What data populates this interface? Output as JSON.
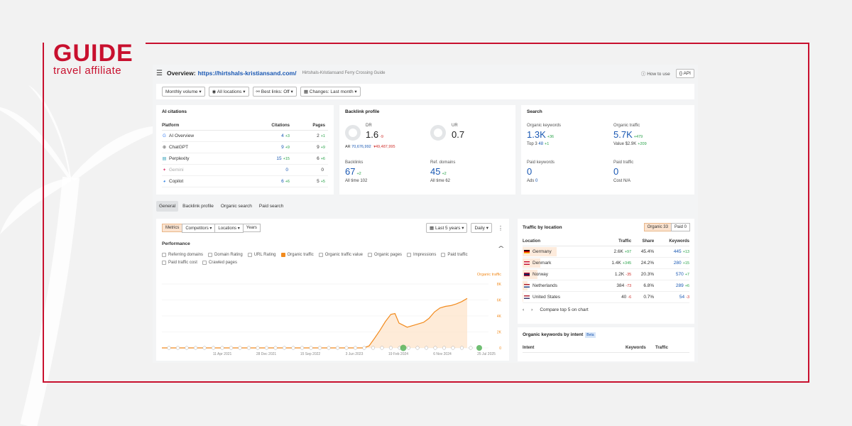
{
  "brand": {
    "name": "GUIDE",
    "tagline": "travel affiliate",
    "accent": "#c8102e"
  },
  "header": {
    "title": "Overview:",
    "url": "https://hirtshals-kristiansand.com/",
    "subtitle": "Hirtshals-Kristiansand Ferry Crossing Guide",
    "how_to_use": "How to use",
    "api": "API"
  },
  "filters": [
    "Monthly volume",
    "All locations",
    "Best links: Off",
    "Changes: Last month"
  ],
  "ai_citations": {
    "title": "AI citations",
    "cols": [
      "Platform",
      "Citations",
      "Pages"
    ],
    "rows": [
      {
        "platform": "AI Overview",
        "icon": "google-icon",
        "citations": "4",
        "cit_delta": "+3",
        "pages": "2",
        "pages_delta": "+1"
      },
      {
        "platform": "ChatGPT",
        "icon": "chatgpt-icon",
        "citations": "9",
        "cit_delta": "+9",
        "pages": "9",
        "pages_delta": "+9"
      },
      {
        "platform": "Perplexity",
        "icon": "perplexity-icon",
        "citations": "15",
        "cit_delta": "+15",
        "pages": "6",
        "pages_delta": "+6"
      },
      {
        "platform": "Gemini",
        "icon": "gemini-icon",
        "citations": "0",
        "cit_delta": "",
        "pages": "0",
        "pages_delta": ""
      },
      {
        "platform": "Copilot",
        "icon": "copilot-icon",
        "citations": "6",
        "cit_delta": "+6",
        "pages": "5",
        "pages_delta": "+5"
      }
    ]
  },
  "backlink": {
    "title": "Backlink profile",
    "dr_label": "DR",
    "dr": "1.6",
    "dr_delta": "-9",
    "ar_label": "AR",
    "ar": "70,676,992",
    "ar_delta": "▾49,487,995",
    "ur_label": "UR",
    "ur": "0.7",
    "backlinks_label": "Backlinks",
    "backlinks": "67",
    "backlinks_delta": "+2",
    "backlinks_all": "All time 102",
    "refdomains_label": "Ref. domains",
    "refdomains": "45",
    "refdomains_delta": "+2",
    "refdomains_all": "All time 62"
  },
  "search": {
    "title": "Search",
    "ok_label": "Organic keywords",
    "ok": "1.3K",
    "ok_delta": "+36",
    "ok_sub": "Top 3",
    "ok_top3": "48",
    "ok_top3_delta": "+1",
    "ot_label": "Organic traffic",
    "ot": "5.7K",
    "ot_delta": "+479",
    "ot_sub": "Value $2.9K",
    "ot_sub_delta": "+209",
    "pk_label": "Paid keywords",
    "pk": "0",
    "pk_sub": "Ads",
    "pk_ads": "0",
    "pt_label": "Paid traffic",
    "pt": "0",
    "pt_sub": "Cost N/A"
  },
  "tabs": [
    "General",
    "Backlink profile",
    "Organic search",
    "Paid search"
  ],
  "perf": {
    "toolbar": [
      "Metrics",
      "Competitors",
      "Locations",
      "Years"
    ],
    "range": "Last 5 years",
    "interval": "Daily",
    "title": "Performance",
    "checks": [
      {
        "label": "Referring domains",
        "on": false
      },
      {
        "label": "Domain Rating",
        "on": false
      },
      {
        "label": "URL Rating",
        "on": false
      },
      {
        "label": "Organic traffic",
        "on": true
      },
      {
        "label": "Organic traffic value",
        "on": false
      },
      {
        "label": "Organic pages",
        "on": false
      },
      {
        "label": "Impressions",
        "on": false
      },
      {
        "label": "Paid traffic",
        "on": false
      },
      {
        "label": "Paid traffic cost",
        "on": false
      },
      {
        "label": "Crawled pages",
        "on": false
      }
    ]
  },
  "chart_data": {
    "type": "line",
    "series": [
      {
        "name": "Organic traffic",
        "color": "#f28b1e"
      }
    ],
    "x_ticks": [
      "11 Apr 2021",
      "28 Dec 2021",
      "15 Sep 2022",
      "3 Jun 2023",
      "19 Feb 2024",
      "6 Nov 2024",
      "25 Jul 2025"
    ],
    "y_ticks": [
      "8K",
      "6K",
      "4K",
      "2K",
      "0"
    ],
    "ylim": [
      0,
      8000
    ],
    "points": [
      [
        0,
        0
      ],
      [
        0.2,
        0
      ],
      [
        0.4,
        0
      ],
      [
        0.6,
        0
      ],
      [
        0.7,
        0
      ],
      [
        0.74,
        0
      ],
      [
        0.76,
        250
      ],
      [
        0.78,
        1200
      ],
      [
        0.8,
        2200
      ],
      [
        0.82,
        3300
      ],
      [
        0.84,
        4200
      ],
      [
        0.855,
        4300
      ],
      [
        0.87,
        3100
      ],
      [
        0.9,
        2600
      ],
      [
        0.93,
        2900
      ],
      [
        0.96,
        3200
      ],
      [
        0.98,
        3700
      ],
      [
        1.0,
        4500
      ],
      [
        1.02,
        5000
      ],
      [
        1.04,
        5200
      ],
      [
        1.06,
        5300
      ],
      [
        1.08,
        5500
      ],
      [
        1.1,
        5800
      ],
      [
        1.12,
        6200
      ]
    ]
  },
  "traffic": {
    "title": "Traffic by location",
    "organic_tab": "Organic 33",
    "paid_tab": "Paid 0",
    "cols": [
      "Location",
      "Traffic",
      "Share",
      "Keywords"
    ],
    "rows": [
      {
        "loc": "Germany",
        "traffic": "2.6K",
        "traffic_delta": "+97",
        "share": "45.4%",
        "share_num": 45.4,
        "kw": "445",
        "kw_delta": "+13",
        "flag": "de"
      },
      {
        "loc": "Denmark",
        "traffic": "1.4K",
        "traffic_delta": "+345",
        "share": "24.2%",
        "share_num": 24.2,
        "kw": "280",
        "kw_delta": "+15",
        "flag": "dk"
      },
      {
        "loc": "Norway",
        "traffic": "1.2K",
        "traffic_delta": "-35",
        "share": "20.3%",
        "share_num": 20.3,
        "kw": "570",
        "kw_delta": "+7",
        "flag": "no"
      },
      {
        "loc": "Netherlands",
        "traffic": "384",
        "traffic_delta": "-73",
        "share": "6.8%",
        "share_num": 6.8,
        "kw": "289",
        "kw_delta": "+6",
        "flag": "nl"
      },
      {
        "loc": "United States",
        "traffic": "40",
        "traffic_delta": "-6",
        "share": "0.7%",
        "share_num": 0.7,
        "kw": "54",
        "kw_delta": "-3",
        "flag": "us"
      }
    ],
    "compare": "Compare top 5 on chart"
  },
  "intent": {
    "title": "Organic keywords by intent",
    "beta": "Beta",
    "cols": [
      "Intent",
      "Keywords",
      "Traffic"
    ]
  }
}
